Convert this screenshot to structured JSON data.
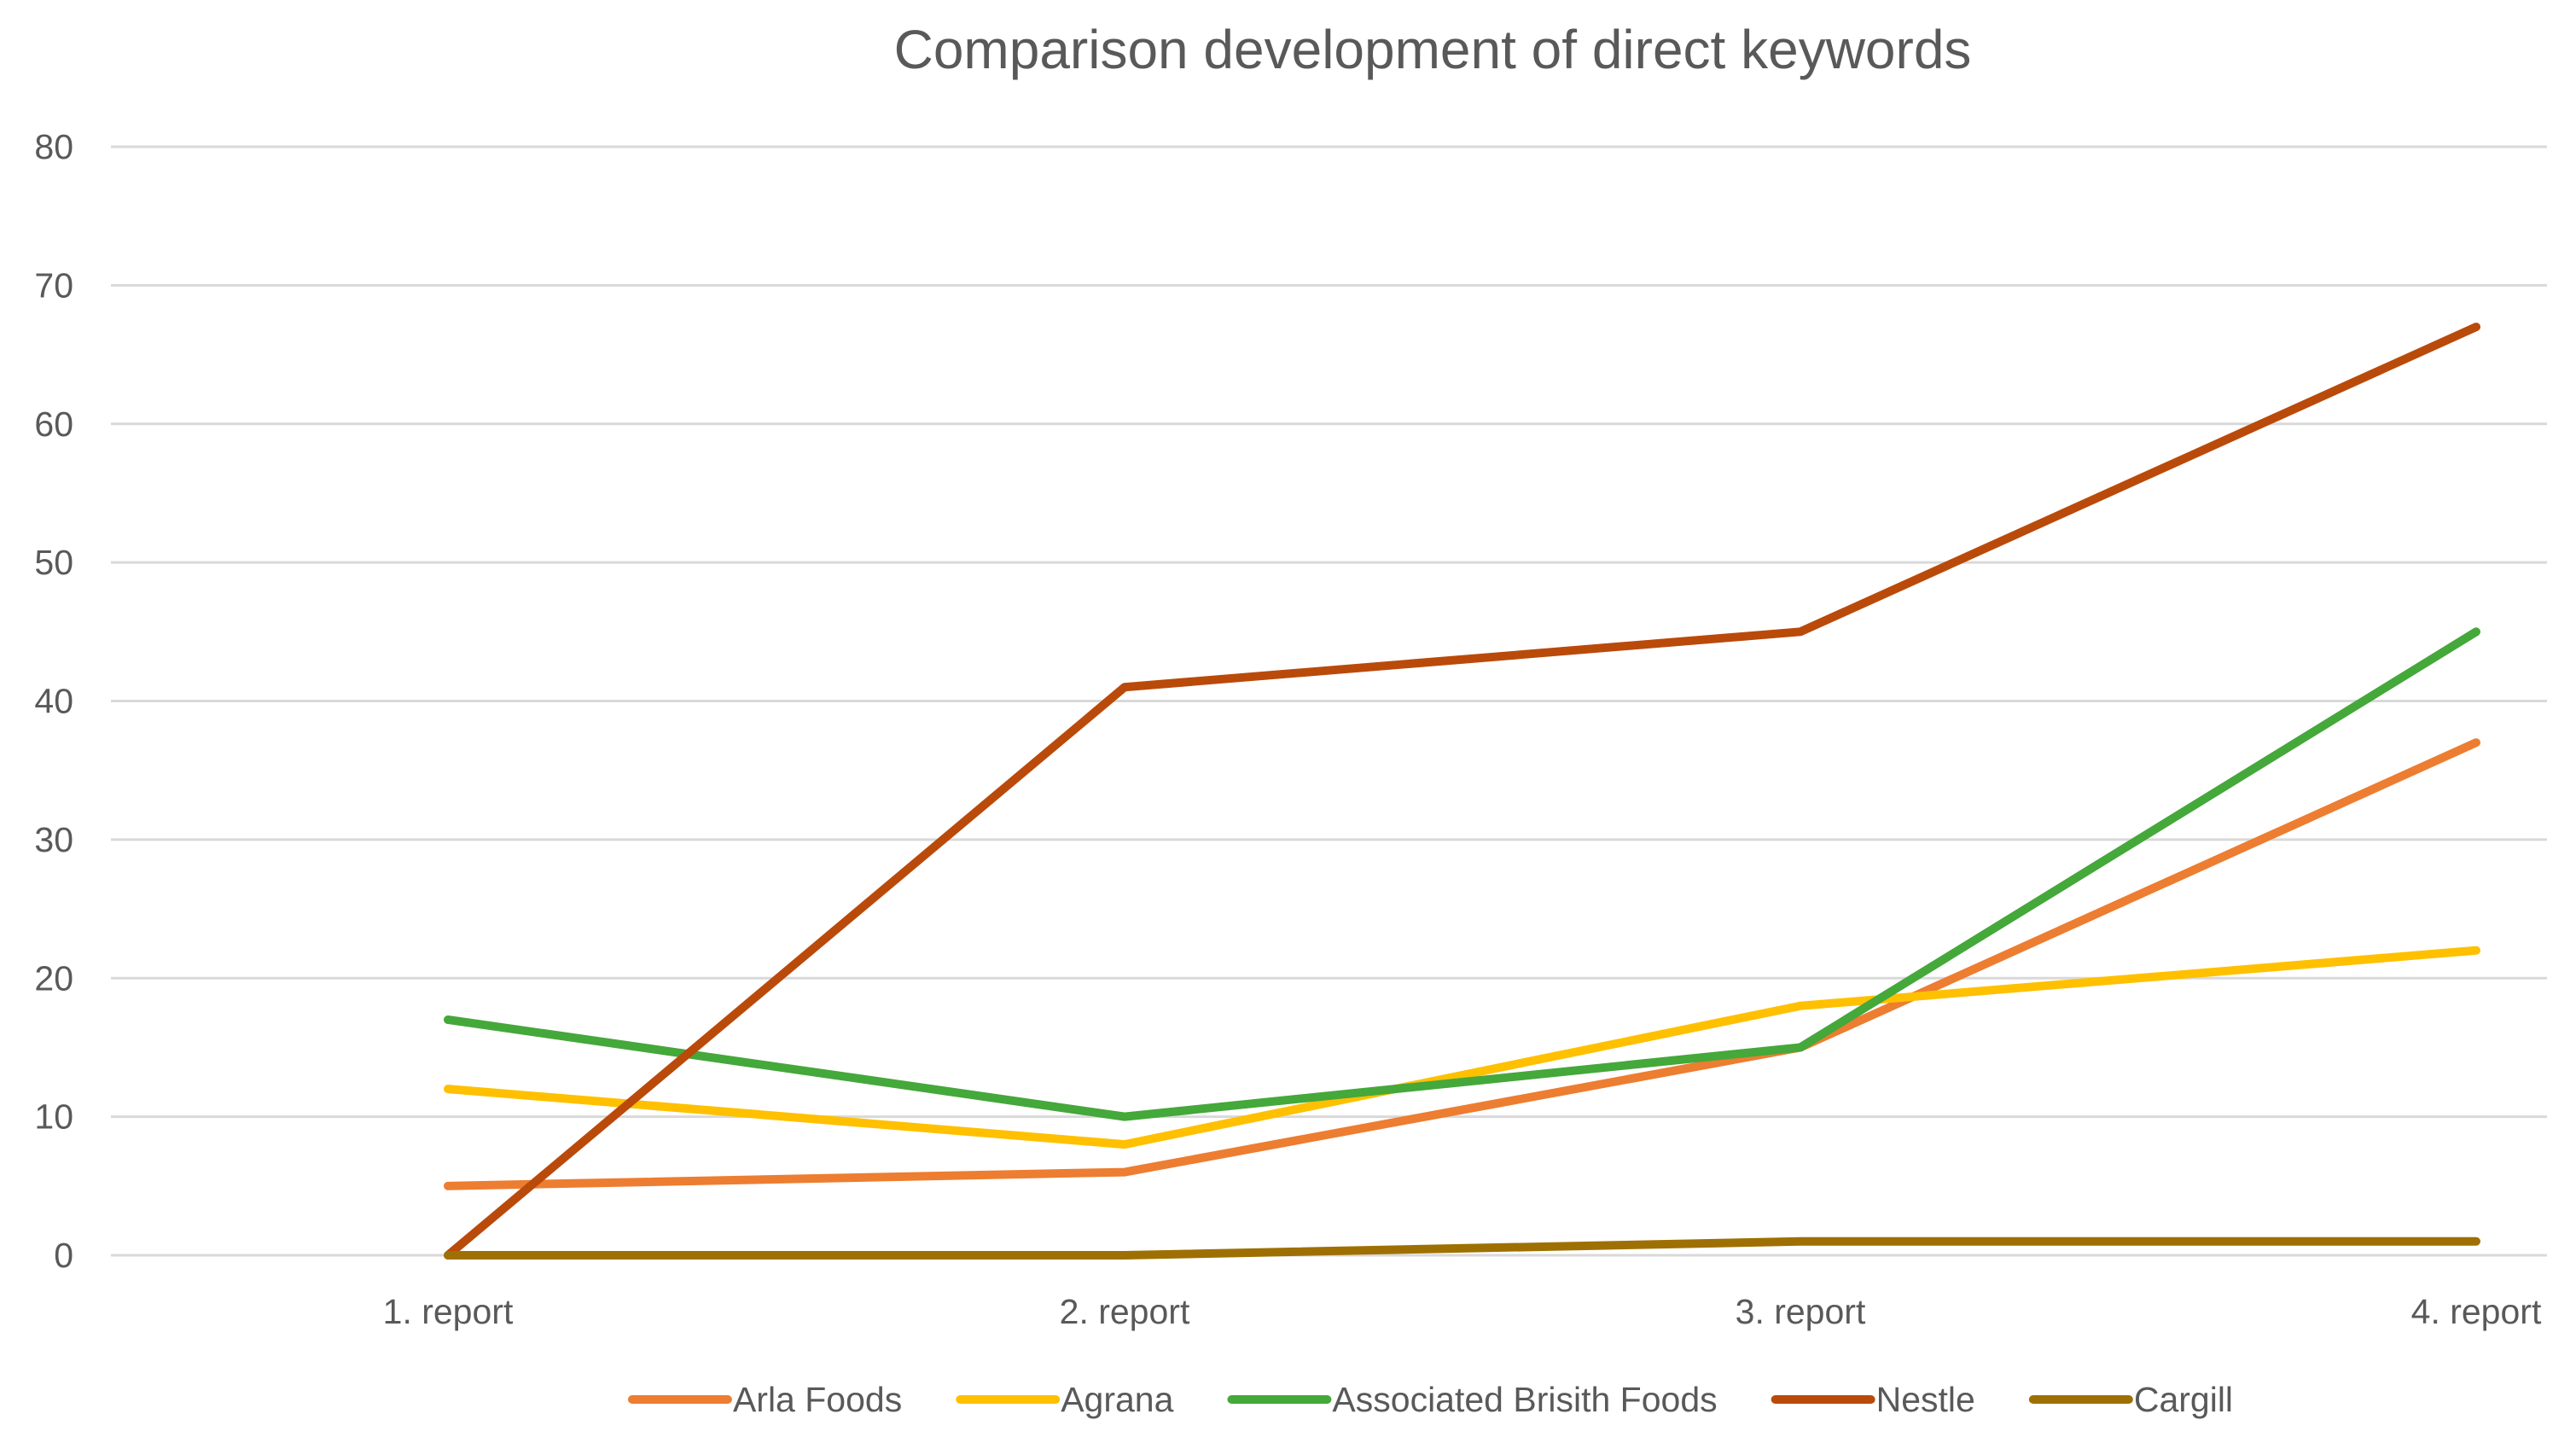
{
  "chart_data": {
    "type": "line",
    "title": "Comparison development of direct keywords",
    "categories": [
      "1. report",
      "2. report",
      "3. report",
      "4. report"
    ],
    "series": [
      {
        "name": "Arla Foods",
        "color": "#ED7D31",
        "values": [
          5,
          6,
          15,
          37
        ]
      },
      {
        "name": "Agrana",
        "color": "#FFC000",
        "values": [
          12,
          8,
          18,
          22
        ]
      },
      {
        "name": "Associated Brisith Foods",
        "color": "#44A83A",
        "values": [
          17,
          10,
          15,
          45
        ]
      },
      {
        "name": "Nestle",
        "color": "#BA4A0A",
        "values": [
          0,
          41,
          45,
          67
        ]
      },
      {
        "name": "Cargill",
        "color": "#9E7003",
        "values": [
          0,
          0,
          1,
          1
        ]
      }
    ],
    "ylim": [
      0,
      80
    ],
    "yticks": [
      0,
      10,
      20,
      30,
      40,
      50,
      60,
      70,
      80
    ],
    "xlabel": "",
    "ylabel": "",
    "grid": true,
    "legend_position": "bottom"
  }
}
